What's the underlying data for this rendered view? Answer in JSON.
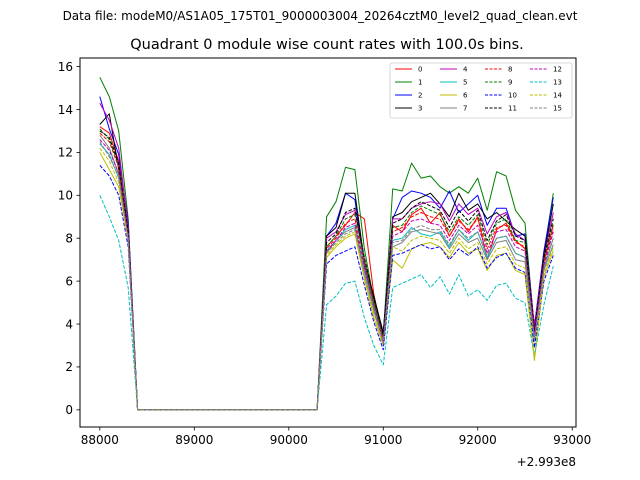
{
  "suptitle": "Data file: modeM0/AS1A05_175T01_9000003004_20264cztM0_level2_quad_clean.evt",
  "chart_data": {
    "type": "line",
    "title": "Quadrant 0 module wise count rates with 100.0s bins.",
    "xlabel": "",
    "ylabel": "",
    "x_offset_label": "+2.993e8",
    "x_offset": 299300000,
    "xlim": [
      87790,
      93040
    ],
    "ylim": [
      -0.8,
      16.4
    ],
    "xticks": [
      88000,
      89000,
      90000,
      91000,
      92000,
      93000
    ],
    "xtick_labels": [
      "88000",
      "89000",
      "90000",
      "91000",
      "92000",
      "93000"
    ],
    "yticks": [
      0,
      2,
      4,
      6,
      8,
      10,
      12,
      14,
      16
    ],
    "ytick_labels": [
      "0",
      "2",
      "4",
      "6",
      "8",
      "10",
      "12",
      "14",
      "16"
    ],
    "legend_position": "top-right",
    "legend_columns": 4,
    "x": [
      88000,
      88100,
      88200,
      88300,
      88400,
      88500,
      88600,
      88700,
      88800,
      88900,
      89000,
      89100,
      89200,
      89300,
      89400,
      89500,
      89600,
      89700,
      89800,
      89900,
      90000,
      90100,
      90200,
      90300,
      90400,
      90500,
      90600,
      90700,
      90800,
      90900,
      91000,
      91100,
      91200,
      91300,
      91400,
      91500,
      91600,
      91700,
      91800,
      91900,
      92000,
      92100,
      92200,
      92300,
      92400,
      92500,
      92600,
      92700,
      92800
    ],
    "series": [
      {
        "name": "0",
        "color": "#ff0000",
        "dash": "solid",
        "values": [
          13.2,
          12.9,
          11.6,
          8.1,
          0,
          0,
          0,
          0,
          0,
          0,
          0,
          0,
          0,
          0,
          0,
          0,
          0,
          0,
          0,
          0,
          0,
          0,
          0,
          0,
          7.6,
          8.1,
          8.6,
          9.2,
          8.9,
          5.4,
          3.3,
          8.6,
          8.3,
          9.1,
          9.4,
          8.7,
          9.2,
          8.1,
          8.9,
          8.3,
          9.0,
          7.0,
          8.4,
          8.7,
          7.9,
          7.5,
          3.8,
          6.9,
          8.6
        ]
      },
      {
        "name": "1",
        "color": "#008000",
        "dash": "solid",
        "values": [
          15.5,
          14.6,
          13.0,
          8.9,
          0,
          0,
          0,
          0,
          0,
          0,
          0,
          0,
          0,
          0,
          0,
          0,
          0,
          0,
          0,
          0,
          0,
          0,
          0,
          0,
          9.0,
          9.7,
          11.3,
          11.2,
          7.5,
          5.1,
          3.5,
          10.3,
          10.2,
          11.5,
          10.8,
          10.9,
          10.4,
          10.1,
          10.4,
          10.1,
          10.8,
          9.3,
          11.1,
          10.9,
          9.3,
          8.7,
          3.7,
          7.3,
          10.1
        ]
      },
      {
        "name": "2",
        "color": "#0000ff",
        "dash": "solid",
        "values": [
          14.6,
          13.1,
          11.9,
          8.7,
          0,
          0,
          0,
          0,
          0,
          0,
          0,
          0,
          0,
          0,
          0,
          0,
          0,
          0,
          0,
          0,
          0,
          0,
          0,
          0,
          8.1,
          8.7,
          10.1,
          9.8,
          6.8,
          4.8,
          3.6,
          8.9,
          9.9,
          10.2,
          10.1,
          9.9,
          9.4,
          10.2,
          9.2,
          9.6,
          10.0,
          8.6,
          9.4,
          9.4,
          8.1,
          8.2,
          3.9,
          7.4,
          9.9
        ]
      },
      {
        "name": "3",
        "color": "#000000",
        "dash": "solid",
        "values": [
          13.3,
          13.8,
          11.2,
          8.4,
          0,
          0,
          0,
          0,
          0,
          0,
          0,
          0,
          0,
          0,
          0,
          0,
          0,
          0,
          0,
          0,
          0,
          0,
          0,
          0,
          8.1,
          8.5,
          10.1,
          10.1,
          6.9,
          5.3,
          3.6,
          9.0,
          9.2,
          9.7,
          9.9,
          10.1,
          9.6,
          9.0,
          10.1,
          9.3,
          9.6,
          8.9,
          9.2,
          8.8,
          8.4,
          8.1,
          3.8,
          7.2,
          9.6
        ]
      },
      {
        "name": "4",
        "color": "#bf00bf",
        "dash": "solid",
        "values": [
          14.3,
          13.5,
          12.2,
          8.5,
          0,
          0,
          0,
          0,
          0,
          0,
          0,
          0,
          0,
          0,
          0,
          0,
          0,
          0,
          0,
          0,
          0,
          0,
          0,
          0,
          8.0,
          8.3,
          9.1,
          9.3,
          7.0,
          5.0,
          3.4,
          8.9,
          8.9,
          9.4,
          9.6,
          9.7,
          9.6,
          8.8,
          9.6,
          9.1,
          9.4,
          8.2,
          9.0,
          9.2,
          8.2,
          7.9,
          3.9,
          7.1,
          9.2
        ]
      },
      {
        "name": "5",
        "color": "#00bfbf",
        "dash": "solid",
        "values": [
          12.4,
          11.9,
          10.8,
          8.0,
          0,
          0,
          0,
          0,
          0,
          0,
          0,
          0,
          0,
          0,
          0,
          0,
          0,
          0,
          0,
          0,
          0,
          0,
          0,
          0,
          7.4,
          7.9,
          8.4,
          8.6,
          6.5,
          4.9,
          3.2,
          7.9,
          8.0,
          8.5,
          8.2,
          8.1,
          8.3,
          7.6,
          8.4,
          7.9,
          8.3,
          7.1,
          8.0,
          8.1,
          7.3,
          7.1,
          3.4,
          6.6,
          8.0
        ]
      },
      {
        "name": "6",
        "color": "#bfbf00",
        "dash": "solid",
        "values": [
          12.0,
          11.2,
          10.4,
          7.9,
          0,
          0,
          0,
          0,
          0,
          0,
          0,
          0,
          0,
          0,
          0,
          0,
          0,
          0,
          0,
          0,
          0,
          0,
          0,
          0,
          7.1,
          7.6,
          8.0,
          8.2,
          6.1,
          4.3,
          3.0,
          7.0,
          6.6,
          7.5,
          7.7,
          7.8,
          7.6,
          7.1,
          7.8,
          7.3,
          7.5,
          6.5,
          7.2,
          7.3,
          6.5,
          6.3,
          2.3,
          6.2,
          7.4
        ]
      },
      {
        "name": "7",
        "color": "#808080",
        "dash": "solid",
        "values": [
          12.8,
          12.2,
          11.0,
          8.2,
          0,
          0,
          0,
          0,
          0,
          0,
          0,
          0,
          0,
          0,
          0,
          0,
          0,
          0,
          0,
          0,
          0,
          0,
          0,
          0,
          7.3,
          7.9,
          8.3,
          8.5,
          6.3,
          4.6,
          3.1,
          7.6,
          7.8,
          8.3,
          8.4,
          8.3,
          8.2,
          7.5,
          8.2,
          7.8,
          8.0,
          7.0,
          7.8,
          7.9,
          7.0,
          6.9,
          3.2,
          6.5,
          7.7
        ]
      },
      {
        "name": "8",
        "color": "#ff0000",
        "dash": "dashed",
        "values": [
          12.9,
          12.5,
          11.3,
          8.1,
          0,
          0,
          0,
          0,
          0,
          0,
          0,
          0,
          0,
          0,
          0,
          0,
          0,
          0,
          0,
          0,
          0,
          0,
          0,
          0,
          7.5,
          8.0,
          8.7,
          8.9,
          6.8,
          5.0,
          3.4,
          8.3,
          8.5,
          9.0,
          9.2,
          9.0,
          8.9,
          8.1,
          8.8,
          8.4,
          8.9,
          7.5,
          8.5,
          8.6,
          7.8,
          7.6,
          3.6,
          6.8,
          8.4
        ]
      },
      {
        "name": "9",
        "color": "#008000",
        "dash": "dashed",
        "values": [
          13.1,
          12.6,
          11.4,
          8.2,
          0,
          0,
          0,
          0,
          0,
          0,
          0,
          0,
          0,
          0,
          0,
          0,
          0,
          0,
          0,
          0,
          0,
          0,
          0,
          0,
          7.6,
          8.1,
          8.9,
          9.1,
          6.9,
          5.0,
          3.3,
          8.5,
          8.6,
          9.2,
          9.5,
          9.3,
          9.1,
          8.3,
          9.0,
          8.6,
          9.1,
          7.7,
          8.7,
          8.9,
          7.9,
          7.8,
          3.5,
          7.0,
          8.7
        ]
      },
      {
        "name": "10",
        "color": "#0000ff",
        "dash": "dashed",
        "values": [
          11.4,
          10.9,
          10.0,
          7.6,
          0,
          0,
          0,
          0,
          0,
          0,
          0,
          0,
          0,
          0,
          0,
          0,
          0,
          0,
          0,
          0,
          0,
          0,
          0,
          0,
          6.8,
          7.2,
          7.4,
          7.6,
          5.8,
          4.1,
          2.8,
          7.2,
          7.3,
          7.5,
          7.7,
          7.5,
          7.6,
          7.0,
          7.5,
          7.2,
          7.6,
          6.6,
          7.1,
          7.3,
          6.6,
          6.4,
          2.9,
          6.0,
          7.2
        ]
      },
      {
        "name": "11",
        "color": "#000000",
        "dash": "dashed",
        "values": [
          13.0,
          12.7,
          11.5,
          8.3,
          0,
          0,
          0,
          0,
          0,
          0,
          0,
          0,
          0,
          0,
          0,
          0,
          0,
          0,
          0,
          0,
          0,
          0,
          0,
          0,
          7.8,
          8.2,
          9.2,
          9.4,
          7.1,
          5.2,
          3.5,
          8.7,
          8.9,
          9.4,
          9.7,
          9.5,
          9.3,
          8.5,
          9.3,
          8.8,
          9.3,
          7.9,
          8.8,
          9.1,
          8.1,
          7.9,
          3.7,
          7.1,
          8.9
        ]
      },
      {
        "name": "12",
        "color": "#bf00bf",
        "dash": "dashed",
        "values": [
          12.6,
          12.1,
          11.0,
          8.0,
          0,
          0,
          0,
          0,
          0,
          0,
          0,
          0,
          0,
          0,
          0,
          0,
          0,
          0,
          0,
          0,
          0,
          0,
          0,
          0,
          7.4,
          7.9,
          8.5,
          8.7,
          6.6,
          4.8,
          3.2,
          8.1,
          8.3,
          8.8,
          8.9,
          8.7,
          8.6,
          7.9,
          8.6,
          8.2,
          8.6,
          7.3,
          8.3,
          8.4,
          7.6,
          7.4,
          3.5,
          6.7,
          8.3
        ]
      },
      {
        "name": "13",
        "color": "#00bfbf",
        "dash": "dashed",
        "values": [
          10.0,
          9.0,
          7.9,
          5.7,
          0,
          0,
          0,
          0,
          0,
          0,
          0,
          0,
          0,
          0,
          0,
          0,
          0,
          0,
          0,
          0,
          0,
          0,
          0,
          0,
          4.9,
          5.3,
          5.9,
          6.0,
          4.3,
          3.0,
          2.1,
          5.7,
          5.9,
          6.1,
          6.3,
          5.7,
          6.2,
          5.4,
          6.3,
          5.3,
          5.6,
          5.1,
          5.8,
          5.9,
          5.2,
          5.0,
          2.5,
          4.9,
          6.7
        ]
      },
      {
        "name": "14",
        "color": "#bfbf00",
        "dash": "dashed",
        "values": [
          12.2,
          11.6,
          10.6,
          7.9,
          0,
          0,
          0,
          0,
          0,
          0,
          0,
          0,
          0,
          0,
          0,
          0,
          0,
          0,
          0,
          0,
          0,
          0,
          0,
          0,
          7.2,
          7.7,
          8.1,
          8.3,
          6.2,
          4.5,
          3.1,
          7.6,
          7.4,
          7.9,
          8.1,
          8.0,
          7.9,
          7.3,
          8.0,
          7.5,
          7.8,
          6.8,
          7.5,
          7.6,
          6.8,
          6.6,
          2.4,
          6.3,
          7.6
        ]
      },
      {
        "name": "15",
        "color": "#808080",
        "dash": "dashed",
        "values": [
          12.5,
          11.8,
          10.9,
          8.0,
          0,
          0,
          0,
          0,
          0,
          0,
          0,
          0,
          0,
          0,
          0,
          0,
          0,
          0,
          0,
          0,
          0,
          0,
          0,
          0,
          7.3,
          7.8,
          8.2,
          8.4,
          6.4,
          4.7,
          3.1,
          7.8,
          7.9,
          8.4,
          8.6,
          8.4,
          8.4,
          7.7,
          8.4,
          8.0,
          8.3,
          7.2,
          8.0,
          8.1,
          7.3,
          7.1,
          3.3,
          6.6,
          8.0
        ]
      }
    ]
  }
}
